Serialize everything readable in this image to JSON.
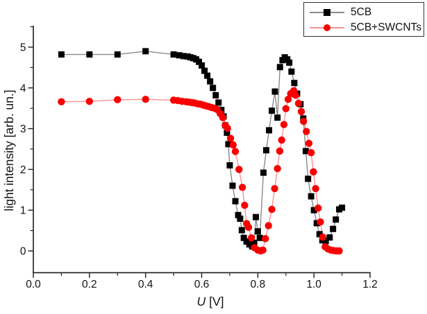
{
  "chart_data": {
    "type": "line",
    "title": "",
    "xlabel": "U [V]",
    "xlabel_var": "U",
    "xlabel_unit": "[V]",
    "ylabel": "light intensity [arb. un.]",
    "xlim": [
      0,
      1.2
    ],
    "ylim": [
      -0.55,
      5.5
    ],
    "grid": false,
    "legend_position": "top-right",
    "x_major_ticks": [
      0.0,
      0.2,
      0.4,
      0.6,
      0.8,
      1.0,
      1.2
    ],
    "x_tick_labels": [
      "0.0",
      "0.2",
      "0.4",
      "0.6",
      "0.8",
      "1.0",
      "1.2"
    ],
    "x_minor_ticks": [
      0.1,
      0.3,
      0.5,
      0.7,
      0.9,
      1.1
    ],
    "y_major_ticks": [
      0,
      1,
      2,
      3,
      4,
      5
    ],
    "y_tick_labels": [
      "0",
      "1",
      "2",
      "3",
      "4",
      "5"
    ],
    "y_minor_ticks": [
      0.5,
      1.5,
      2.5,
      3.5,
      4.5,
      5.5
    ],
    "axis_color": "#1a1a1a",
    "series": [
      {
        "name": "5CB",
        "marker": "square",
        "marker_color": "#000000",
        "line_color": "#8a8a8a",
        "points": [
          [
            0.1,
            4.82
          ],
          [
            0.2,
            4.82
          ],
          [
            0.3,
            4.82
          ],
          [
            0.4,
            4.9
          ],
          [
            0.5,
            4.82
          ],
          [
            0.52,
            4.8
          ],
          [
            0.535,
            4.78
          ],
          [
            0.55,
            4.77
          ],
          [
            0.56,
            4.75
          ],
          [
            0.57,
            4.73
          ],
          [
            0.58,
            4.7
          ],
          [
            0.59,
            4.64
          ],
          [
            0.6,
            4.55
          ],
          [
            0.61,
            4.42
          ],
          [
            0.62,
            4.3
          ],
          [
            0.63,
            4.16
          ],
          [
            0.64,
            4.0
          ],
          [
            0.65,
            3.82
          ],
          [
            0.66,
            3.64
          ],
          [
            0.67,
            3.46
          ],
          [
            0.678,
            3.3
          ],
          [
            0.684,
            3.08
          ],
          [
            0.69,
            2.9
          ],
          [
            0.695,
            2.62
          ],
          [
            0.7,
            2.1
          ],
          [
            0.71,
            1.6
          ],
          [
            0.72,
            1.22
          ],
          [
            0.73,
            0.88
          ],
          [
            0.737,
            0.79
          ],
          [
            0.743,
            0.51
          ],
          [
            0.75,
            0.32
          ],
          [
            0.76,
            0.23
          ],
          [
            0.77,
            0.16
          ],
          [
            0.78,
            0.11
          ],
          [
            0.787,
            0.2
          ],
          [
            0.793,
            0.83
          ],
          [
            0.8,
            0.48
          ],
          [
            0.807,
            0.32
          ],
          [
            0.82,
            1.92
          ],
          [
            0.83,
            2.47
          ],
          [
            0.84,
            2.96
          ],
          [
            0.85,
            3.44
          ],
          [
            0.861,
            3.91
          ],
          [
            0.87,
            3.27
          ],
          [
            0.879,
            4.51
          ],
          [
            0.888,
            4.68
          ],
          [
            0.896,
            4.75
          ],
          [
            0.905,
            4.7
          ],
          [
            0.912,
            4.62
          ],
          [
            0.92,
            4.4
          ],
          [
            0.93,
            4.12
          ],
          [
            0.94,
            3.86
          ],
          [
            0.952,
            3.6
          ],
          [
            0.962,
            3.25
          ],
          [
            0.971,
            2.45
          ],
          [
            0.979,
            1.77
          ],
          [
            0.99,
            1.34
          ],
          [
            1.0,
            1.0
          ],
          [
            1.01,
            0.68
          ],
          [
            1.02,
            0.41
          ],
          [
            1.03,
            0.26
          ],
          [
            1.042,
            0.24
          ],
          [
            1.056,
            0.33
          ],
          [
            1.068,
            0.54
          ],
          [
            1.078,
            0.77
          ],
          [
            1.09,
            1.02
          ],
          [
            1.1,
            1.06
          ]
        ]
      },
      {
        "name": "5CB+SWCNTs",
        "marker": "circle",
        "marker_color": "#f80000",
        "line_color": "#ff8f8f",
        "points": [
          [
            0.1,
            3.66
          ],
          [
            0.2,
            3.67
          ],
          [
            0.3,
            3.71
          ],
          [
            0.4,
            3.72
          ],
          [
            0.5,
            3.7
          ],
          [
            0.515,
            3.69
          ],
          [
            0.53,
            3.67
          ],
          [
            0.545,
            3.66
          ],
          [
            0.555,
            3.65
          ],
          [
            0.565,
            3.64
          ],
          [
            0.575,
            3.63
          ],
          [
            0.585,
            3.61
          ],
          [
            0.595,
            3.6
          ],
          [
            0.605,
            3.58
          ],
          [
            0.615,
            3.56
          ],
          [
            0.625,
            3.54
          ],
          [
            0.635,
            3.52
          ],
          [
            0.645,
            3.5
          ],
          [
            0.655,
            3.47
          ],
          [
            0.666,
            3.37
          ],
          [
            0.675,
            3.27
          ],
          [
            0.684,
            3.08
          ],
          [
            0.692,
            3.01
          ],
          [
            0.703,
            2.76
          ],
          [
            0.712,
            2.6
          ],
          [
            0.72,
            2.44
          ],
          [
            0.733,
            2.0
          ],
          [
            0.745,
            1.56
          ],
          [
            0.753,
            1.12
          ],
          [
            0.76,
            0.67
          ],
          [
            0.767,
            0.58
          ],
          [
            0.777,
            0.32
          ],
          [
            0.788,
            0.08
          ],
          [
            0.8,
            0.02
          ],
          [
            0.81,
            0.0
          ],
          [
            0.818,
            0.02
          ],
          [
            0.827,
            0.3
          ],
          [
            0.838,
            0.62
          ],
          [
            0.85,
            1.02
          ],
          [
            0.86,
            1.53
          ],
          [
            0.87,
            2.02
          ],
          [
            0.878,
            2.45
          ],
          [
            0.885,
            2.72
          ],
          [
            0.893,
            3.1
          ],
          [
            0.9,
            3.49
          ],
          [
            0.908,
            3.72
          ],
          [
            0.917,
            3.86
          ],
          [
            0.928,
            3.93
          ],
          [
            0.934,
            3.82
          ],
          [
            0.945,
            3.62
          ],
          [
            0.955,
            3.42
          ],
          [
            0.963,
            3.18
          ],
          [
            0.973,
            2.93
          ],
          [
            0.982,
            2.64
          ],
          [
            0.99,
            2.41
          ],
          [
            0.998,
            1.94
          ],
          [
            1.006,
            1.53
          ],
          [
            1.015,
            1.05
          ],
          [
            1.023,
            0.71
          ],
          [
            1.031,
            0.34
          ],
          [
            1.04,
            0.1
          ],
          [
            1.05,
            0.05
          ],
          [
            1.06,
            0.02
          ],
          [
            1.07,
            0.01
          ],
          [
            1.08,
            0.0
          ],
          [
            1.09,
            0.0
          ]
        ]
      }
    ]
  }
}
